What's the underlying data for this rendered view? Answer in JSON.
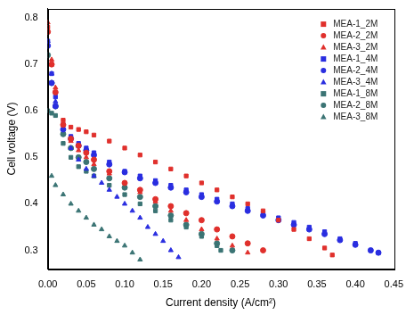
{
  "chart_data": {
    "type": "scatter",
    "x_label": "Current density (A/cm²)",
    "y_label": "Cell voltage (V)",
    "xlim": [
      0,
      0.45
    ],
    "ylim": [
      0.26,
      0.82
    ],
    "xticks": [
      {
        "value": 0,
        "label": "0.00"
      },
      0.05,
      {
        "value": 0.1,
        "label": "0.10"
      },
      0.15,
      {
        "value": 0.2,
        "label": "0.20"
      },
      0.25,
      {
        "value": 0.3,
        "label": "0.30"
      },
      0.35,
      {
        "value": 0.4,
        "label": "0.40"
      },
      0.45
    ],
    "yticks": [
      0.3,
      0.4,
      0.5,
      0.6,
      0.7,
      0.8
    ],
    "grid": false,
    "legend": "upper right",
    "series": [
      {
        "name": "MEA-1_2M",
        "color": "#e0302c",
        "marker": "square",
        "x": [
          0,
          0.005,
          0.01,
          0.02,
          0.03,
          0.04,
          0.05,
          0.06,
          0.08,
          0.1,
          0.12,
          0.14,
          0.16,
          0.18,
          0.2,
          0.22,
          0.24,
          0.26,
          0.28,
          0.3,
          0.32,
          0.34,
          0.36,
          0.37
        ],
        "values": [
          0.78,
          0.7,
          0.64,
          0.58,
          0.565,
          0.56,
          0.555,
          0.548,
          0.535,
          0.52,
          0.505,
          0.49,
          0.475,
          0.46,
          0.445,
          0.43,
          0.415,
          0.4,
          0.385,
          0.365,
          0.345,
          0.325,
          0.305,
          0.29
        ]
      },
      {
        "name": "MEA-2_2M",
        "color": "#e0302c",
        "marker": "circle",
        "x": [
          0,
          0.005,
          0.01,
          0.02,
          0.03,
          0.04,
          0.05,
          0.06,
          0.08,
          0.1,
          0.12,
          0.14,
          0.16,
          0.18,
          0.2,
          0.22,
          0.24,
          0.26,
          0.28
        ],
        "values": [
          0.77,
          0.7,
          0.64,
          0.57,
          0.54,
          0.525,
          0.51,
          0.495,
          0.47,
          0.445,
          0.43,
          0.41,
          0.395,
          0.38,
          0.365,
          0.345,
          0.33,
          0.315,
          0.3
        ]
      },
      {
        "name": "MEA-3_2M",
        "color": "#e0302c",
        "marker": "triangle",
        "x": [
          0,
          0.005,
          0.01,
          0.02,
          0.03,
          0.04,
          0.05,
          0.06,
          0.08,
          0.1,
          0.12,
          0.14,
          0.16,
          0.18,
          0.2,
          0.22,
          0.24,
          0.26
        ],
        "values": [
          0.79,
          0.71,
          0.65,
          0.57,
          0.535,
          0.515,
          0.5,
          0.485,
          0.465,
          0.445,
          0.425,
          0.405,
          0.385,
          0.365,
          0.345,
          0.325,
          0.31,
          0.295
        ]
      },
      {
        "name": "MEA-1_4M",
        "color": "#2a2ee0",
        "marker": "square",
        "x": [
          0,
          0.005,
          0.01,
          0.02,
          0.03,
          0.04,
          0.05,
          0.06,
          0.08,
          0.1,
          0.12,
          0.14,
          0.16,
          0.18,
          0.2,
          0.22,
          0.24,
          0.26,
          0.28,
          0.3,
          0.32,
          0.34,
          0.36,
          0.38,
          0.4,
          0.42,
          0.43
        ],
        "values": [
          0.75,
          0.68,
          0.63,
          0.57,
          0.545,
          0.53,
          0.52,
          0.51,
          0.49,
          0.47,
          0.46,
          0.45,
          0.44,
          0.43,
          0.42,
          0.41,
          0.4,
          0.39,
          0.38,
          0.37,
          0.36,
          0.35,
          0.34,
          0.325,
          0.315,
          0.3,
          0.295
        ]
      },
      {
        "name": "MEA-2_4M",
        "color": "#2a2ee0",
        "marker": "circle",
        "x": [
          0,
          0.005,
          0.01,
          0.02,
          0.03,
          0.04,
          0.05,
          0.06,
          0.08,
          0.1,
          0.12,
          0.14,
          0.16,
          0.18,
          0.2,
          0.22,
          0.24,
          0.26,
          0.28,
          0.3,
          0.32,
          0.34,
          0.36,
          0.38,
          0.4,
          0.42,
          0.43
        ],
        "values": [
          0.74,
          0.66,
          0.61,
          0.56,
          0.54,
          0.525,
          0.515,
          0.505,
          0.485,
          0.468,
          0.455,
          0.445,
          0.435,
          0.425,
          0.415,
          0.405,
          0.395,
          0.385,
          0.375,
          0.365,
          0.355,
          0.345,
          0.335,
          0.322,
          0.312,
          0.3,
          0.295
        ]
      },
      {
        "name": "MEA-3_4M",
        "color": "#2a2ee0",
        "marker": "triangle",
        "x": [
          0,
          0.005,
          0.01,
          0.02,
          0.03,
          0.04,
          0.05,
          0.06,
          0.07,
          0.08,
          0.09,
          0.1,
          0.11,
          0.12,
          0.13,
          0.14,
          0.15,
          0.16,
          0.17
        ],
        "values": [
          0.75,
          0.68,
          0.62,
          0.56,
          0.52,
          0.495,
          0.475,
          0.46,
          0.445,
          0.43,
          0.415,
          0.4,
          0.385,
          0.37,
          0.35,
          0.335,
          0.32,
          0.3,
          0.285
        ]
      },
      {
        "name": "MEA-1_8M",
        "color": "#3b7474",
        "marker": "square",
        "x": [
          0,
          0.005,
          0.01,
          0.02,
          0.03,
          0.04,
          0.05,
          0.06,
          0.08,
          0.1,
          0.12,
          0.14,
          0.16,
          0.18,
          0.2,
          0.22,
          0.225
        ],
        "values": [
          0.6,
          0.595,
          0.59,
          0.53,
          0.5,
          0.48,
          0.47,
          0.46,
          0.44,
          0.42,
          0.4,
          0.385,
          0.365,
          0.35,
          0.33,
          0.31,
          0.3
        ]
      },
      {
        "name": "MEA-2_8M",
        "color": "#3b7474",
        "marker": "circle",
        "x": [
          0,
          0.005,
          0.01,
          0.02,
          0.03,
          0.04,
          0.05,
          0.06,
          0.08,
          0.1,
          0.12,
          0.14,
          0.16,
          0.18,
          0.2,
          0.22,
          0.24
        ],
        "values": [
          0.72,
          0.66,
          0.61,
          0.55,
          0.52,
          0.5,
          0.49,
          0.475,
          0.455,
          0.435,
          0.415,
          0.395,
          0.375,
          0.355,
          0.335,
          0.315,
          0.3
        ]
      },
      {
        "name": "MEA-3_8M",
        "color": "#3b7474",
        "marker": "triangle",
        "x": [
          0,
          0.005,
          0.01,
          0.02,
          0.03,
          0.04,
          0.05,
          0.06,
          0.07,
          0.08,
          0.09,
          0.1,
          0.11,
          0.12
        ],
        "values": [
          0.6,
          0.46,
          0.44,
          0.42,
          0.4,
          0.385,
          0.37,
          0.355,
          0.345,
          0.33,
          0.32,
          0.31,
          0.295,
          0.28
        ]
      }
    ]
  }
}
